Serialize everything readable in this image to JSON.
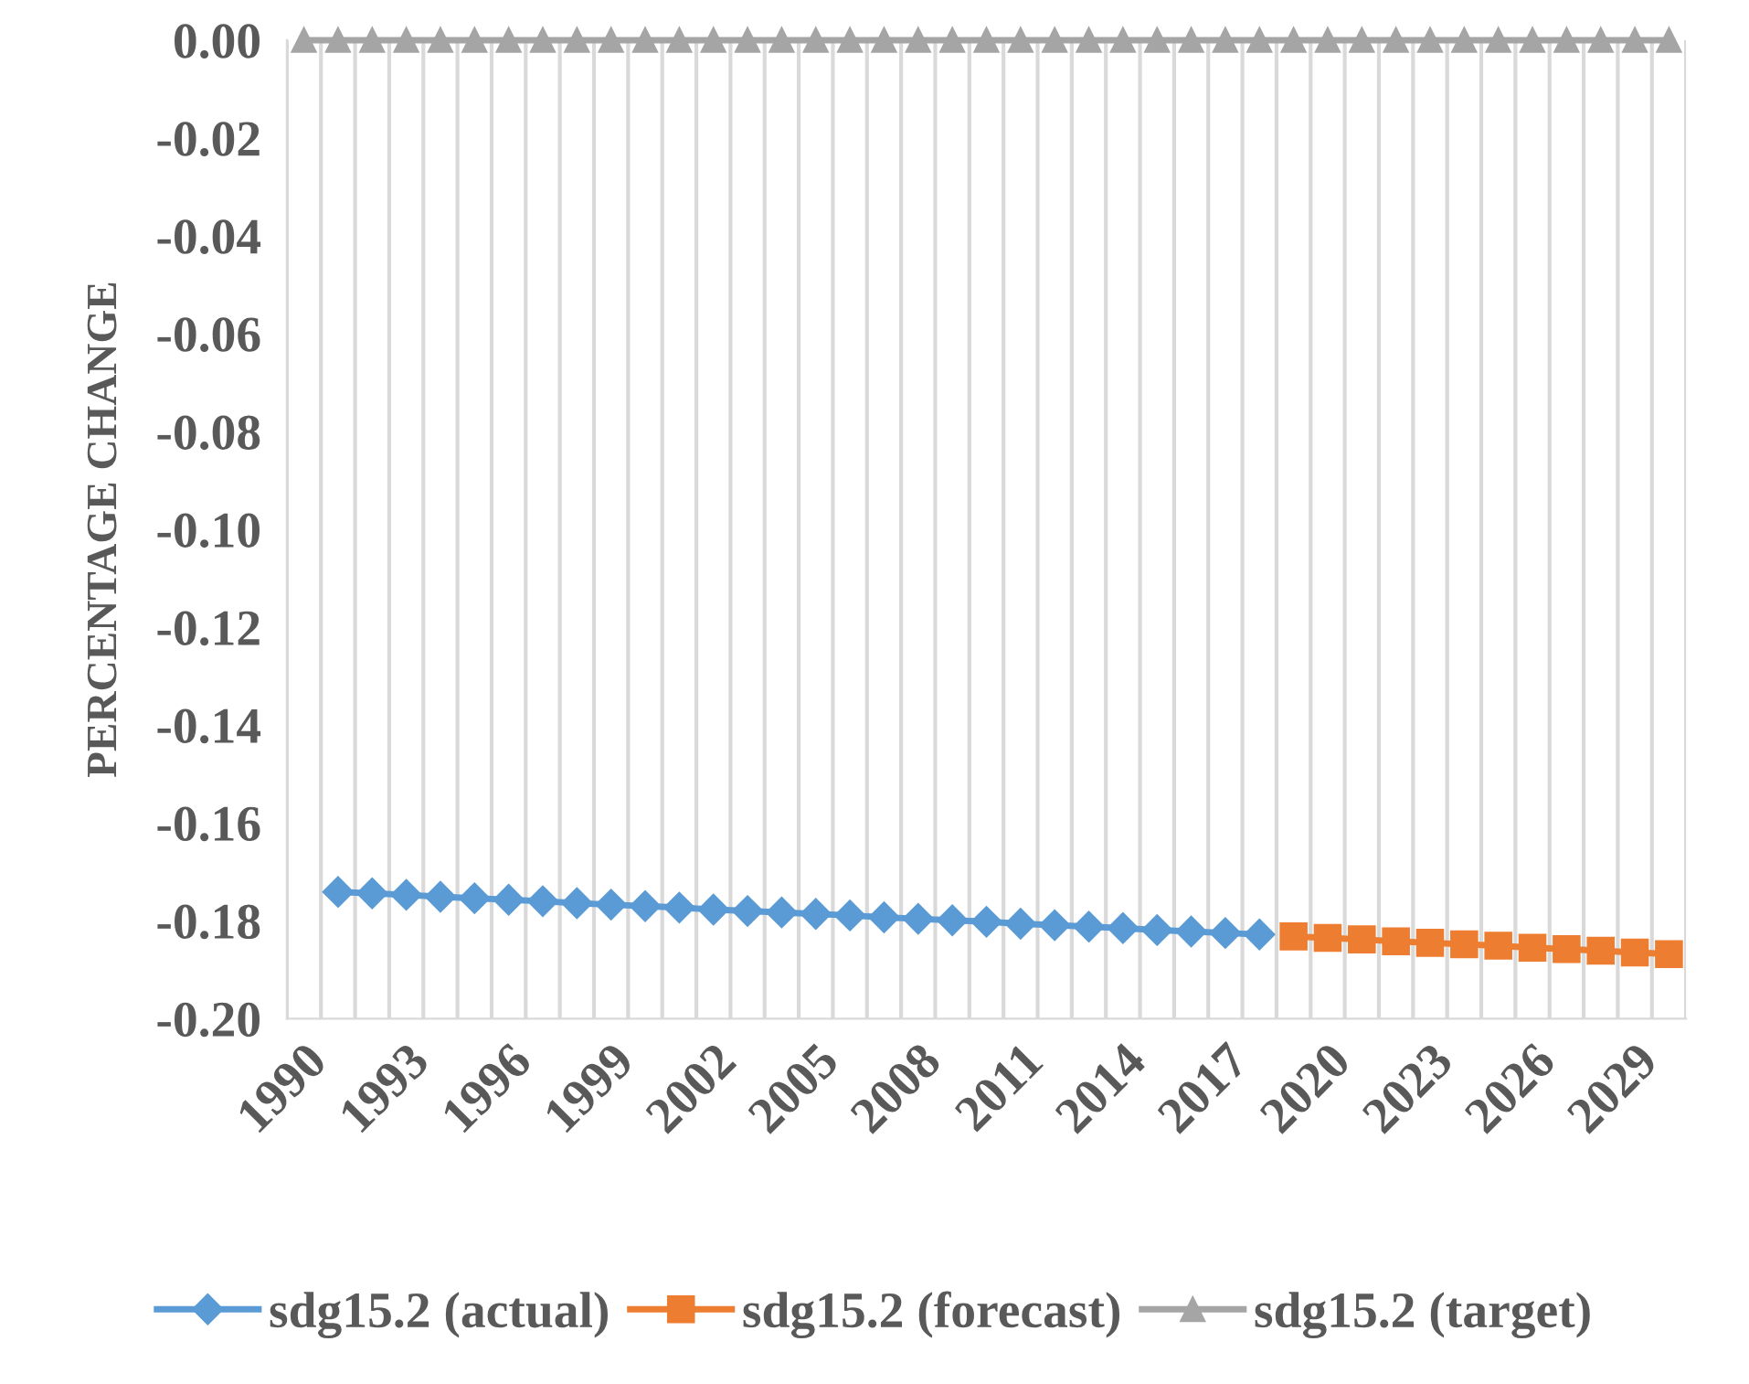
{
  "chart_data": {
    "type": "line",
    "ylabel": "PERCENTAGE CHANGE",
    "categories": [
      "1990",
      null,
      null,
      "1993",
      null,
      null,
      "1996",
      null,
      null,
      "1999",
      null,
      null,
      "2002",
      null,
      null,
      "2005",
      null,
      null,
      "2008",
      null,
      null,
      "2011",
      null,
      null,
      "2014",
      null,
      null,
      "2017",
      null,
      null,
      "2020",
      null,
      null,
      "2023",
      null,
      null,
      "2026",
      null,
      null,
      "2029",
      null
    ],
    "series": [
      {
        "name": "sdg15.2 (actual)",
        "color": "#5b9bd5",
        "marker": "diamond",
        "values": [
          null,
          -0.1741,
          -0.1744,
          -0.1747,
          -0.1751,
          -0.1754,
          -0.1757,
          -0.176,
          -0.1764,
          -0.1767,
          -0.177,
          -0.1773,
          -0.1777,
          -0.178,
          -0.1783,
          -0.1786,
          -0.1789,
          -0.1793,
          -0.1796,
          -0.1799,
          -0.1802,
          -0.1806,
          -0.1809,
          -0.1812,
          -0.1815,
          -0.1819,
          -0.1822,
          -0.1825,
          -0.1828,
          null,
          null,
          null,
          null,
          null,
          null,
          null,
          null,
          null,
          null,
          null,
          null
        ]
      },
      {
        "name": "sdg15.2 (forecast)",
        "color": "#ed7d31",
        "marker": "square",
        "values": [
          null,
          null,
          null,
          null,
          null,
          null,
          null,
          null,
          null,
          null,
          null,
          null,
          null,
          null,
          null,
          null,
          null,
          null,
          null,
          null,
          null,
          null,
          null,
          null,
          null,
          null,
          null,
          null,
          null,
          -0.1832,
          -0.1835,
          -0.1838,
          -0.1842,
          -0.1845,
          -0.1848,
          -0.1851,
          -0.1855,
          -0.1858,
          -0.1861,
          -0.1865,
          -0.1868
        ]
      },
      {
        "name": "sdg15.2 (target)",
        "color": "#a5a5a5",
        "marker": "triangle",
        "values": [
          0,
          0,
          0,
          0,
          0,
          0,
          0,
          0,
          0,
          0,
          0,
          0,
          0,
          0,
          0,
          0,
          0,
          0,
          0,
          0,
          0,
          0,
          0,
          0,
          0,
          0,
          0,
          0,
          0,
          0,
          0,
          0,
          0,
          0,
          0,
          0,
          0,
          0,
          0,
          0,
          0
        ]
      }
    ],
    "ylim": [
      -0.2,
      0
    ],
    "yticks": [
      {
        "value": 0,
        "label": "0.00"
      },
      {
        "value": -0.02,
        "label": "-0.02"
      },
      {
        "value": -0.04,
        "label": "-0.04"
      },
      {
        "value": -0.06,
        "label": "-0.06"
      },
      {
        "value": -0.08,
        "label": "-0.08"
      },
      {
        "value": -0.1,
        "label": "-0.10"
      },
      {
        "value": -0.12,
        "label": "-0.12"
      },
      {
        "value": -0.14,
        "label": "-0.14"
      },
      {
        "value": -0.16,
        "label": "-0.16"
      },
      {
        "value": -0.18,
        "label": "-0.18"
      },
      {
        "value": -0.2,
        "label": "-0.20"
      }
    ],
    "grid": "x",
    "legend": "bottom",
    "line_style": "solid"
  }
}
